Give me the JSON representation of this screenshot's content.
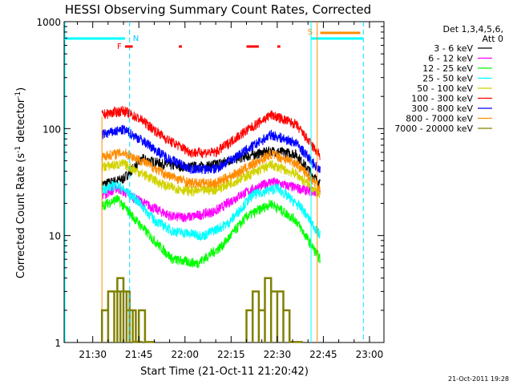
{
  "chart_data": {
    "type": "line",
    "title": "HESSI Observing Summary Count Rates, Corrected",
    "xlabel": "Start Time (21-Oct-11 21:20:42)",
    "ylabel_main": "Corrected Count Rate (s",
    "ylabel_sup1": "-1",
    "ylabel_mid": " detector",
    "ylabel_sup2": "-1",
    "ylabel_end": ")",
    "yscale": "log",
    "ylim": [
      1,
      1000
    ],
    "xlim_min": [
      20.7,
      178
    ],
    "y_ticks": [
      {
        "v": 1,
        "label": "1"
      },
      {
        "v": 10,
        "label": "10"
      },
      {
        "v": 100,
        "label": "100"
      },
      {
        "v": 1000,
        "label": "1000"
      }
    ],
    "x_ticks": [
      {
        "v": 30,
        "label": "21:30"
      },
      {
        "v": 45,
        "label": "21:45"
      },
      {
        "v": 60,
        "label": "22:00"
      },
      {
        "v": 75,
        "label": "22:15"
      },
      {
        "v": 90,
        "label": "22:30"
      },
      {
        "v": 105,
        "label": "22:45"
      },
      {
        "v": 120,
        "label": "23:00"
      }
    ],
    "legend_header": [
      "Det 1,3,4,5,6,",
      "Att 0"
    ],
    "legend": [
      {
        "label": "3 - 6 keV",
        "color": "#000000"
      },
      {
        "label": "6 - 12 keV",
        "color": "#ff00ff"
      },
      {
        "label": "12 - 25 keV",
        "color": "#00ff00"
      },
      {
        "label": "25 - 50 keV",
        "color": "#00ffff"
      },
      {
        "label": "50 - 100 keV",
        "color": "#d2d200"
      },
      {
        "label": "100 - 300 keV",
        "color": "#ff0000"
      },
      {
        "label": "300 - 800 keV",
        "color": "#0000ff"
      },
      {
        "label": "800 - 7000 keV",
        "color": "#ff8c00"
      },
      {
        "label": "7000 - 20000 keV",
        "color": "#808000"
      }
    ],
    "series_profiles": [
      {
        "color": "#000000",
        "values": [
          [
            33,
            30
          ],
          [
            40,
            34
          ],
          [
            46,
            52
          ],
          [
            54,
            46
          ],
          [
            60,
            44
          ],
          [
            68,
            45
          ],
          [
            76,
            52
          ],
          [
            88,
            62
          ],
          [
            96,
            58
          ],
          [
            104,
            30
          ]
        ]
      },
      {
        "color": "#ff00ff",
        "values": [
          [
            33,
            24
          ],
          [
            38,
            28
          ],
          [
            44,
            22
          ],
          [
            50,
            18
          ],
          [
            56,
            15
          ],
          [
            62,
            15
          ],
          [
            70,
            17
          ],
          [
            78,
            24
          ],
          [
            88,
            32
          ],
          [
            96,
            28
          ],
          [
            104,
            25
          ]
        ]
      },
      {
        "color": "#00ff00",
        "values": [
          [
            33,
            19
          ],
          [
            38,
            22
          ],
          [
            44,
            14
          ],
          [
            50,
            9
          ],
          [
            56,
            6
          ],
          [
            64,
            5.5
          ],
          [
            72,
            8
          ],
          [
            80,
            15
          ],
          [
            88,
            20
          ],
          [
            96,
            14
          ],
          [
            104,
            6
          ]
        ]
      },
      {
        "color": "#00ffff",
        "values": [
          [
            33,
            27
          ],
          [
            38,
            30
          ],
          [
            44,
            22
          ],
          [
            50,
            14
          ],
          [
            56,
            11
          ],
          [
            66,
            10
          ],
          [
            74,
            13
          ],
          [
            82,
            24
          ],
          [
            90,
            28
          ],
          [
            98,
            18
          ],
          [
            104,
            10
          ]
        ]
      },
      {
        "color": "#d2d200",
        "values": [
          [
            33,
            44
          ],
          [
            40,
            47
          ],
          [
            46,
            38
          ],
          [
            54,
            29
          ],
          [
            62,
            26
          ],
          [
            70,
            27
          ],
          [
            78,
            34
          ],
          [
            88,
            46
          ],
          [
            96,
            38
          ],
          [
            104,
            24
          ]
        ]
      },
      {
        "color": "#ff0000",
        "values": [
          [
            33,
            135
          ],
          [
            40,
            148
          ],
          [
            46,
            120
          ],
          [
            54,
            80
          ],
          [
            62,
            60
          ],
          [
            70,
            60
          ],
          [
            78,
            88
          ],
          [
            88,
            135
          ],
          [
            96,
            110
          ],
          [
            104,
            55
          ]
        ]
      },
      {
        "color": "#0000ff",
        "values": [
          [
            33,
            88
          ],
          [
            40,
            98
          ],
          [
            46,
            78
          ],
          [
            54,
            54
          ],
          [
            62,
            42
          ],
          [
            70,
            42
          ],
          [
            78,
            58
          ],
          [
            88,
            88
          ],
          [
            96,
            74
          ],
          [
            104,
            40
          ]
        ]
      },
      {
        "color": "#ff8c00",
        "values": [
          [
            33,
            55
          ],
          [
            40,
            60
          ],
          [
            46,
            50
          ],
          [
            54,
            37
          ],
          [
            62,
            31
          ],
          [
            70,
            31
          ],
          [
            78,
            40
          ],
          [
            88,
            58
          ],
          [
            96,
            48
          ],
          [
            104,
            28
          ]
        ]
      }
    ],
    "olive_blocks": [
      [
        33,
        2
      ],
      [
        35,
        3
      ],
      [
        37,
        3
      ],
      [
        38,
        4
      ],
      [
        39,
        3
      ],
      [
        40,
        3
      ],
      [
        41,
        2
      ],
      [
        42,
        2
      ],
      [
        43,
        1
      ],
      [
        44,
        1
      ],
      [
        45,
        2
      ],
      [
        47,
        1
      ],
      [
        48,
        1
      ],
      [
        80,
        2
      ],
      [
        82,
        3
      ],
      [
        84,
        2
      ],
      [
        86,
        4
      ],
      [
        88,
        3
      ],
      [
        90,
        3
      ],
      [
        92,
        2
      ],
      [
        94,
        1
      ],
      [
        96,
        1
      ]
    ],
    "markers": [
      {
        "label": "F",
        "x": 40,
        "color": "#ff0000"
      },
      {
        "label": "N",
        "x": 42,
        "color": "#00c8ff"
      },
      {
        "label": "S",
        "x": 103,
        "color": "#ff8c00"
      }
    ],
    "flare_segments": [
      [
        40.5,
        43
      ],
      [
        58,
        59
      ],
      [
        80,
        84
      ],
      [
        90,
        91
      ]
    ],
    "saa_segments": [
      [
        20.7,
        40.5
      ],
      [
        101,
        118
      ]
    ],
    "orange_bar": [
      104,
      117
    ],
    "timestamp": "21-Oct-2011 19:28"
  }
}
